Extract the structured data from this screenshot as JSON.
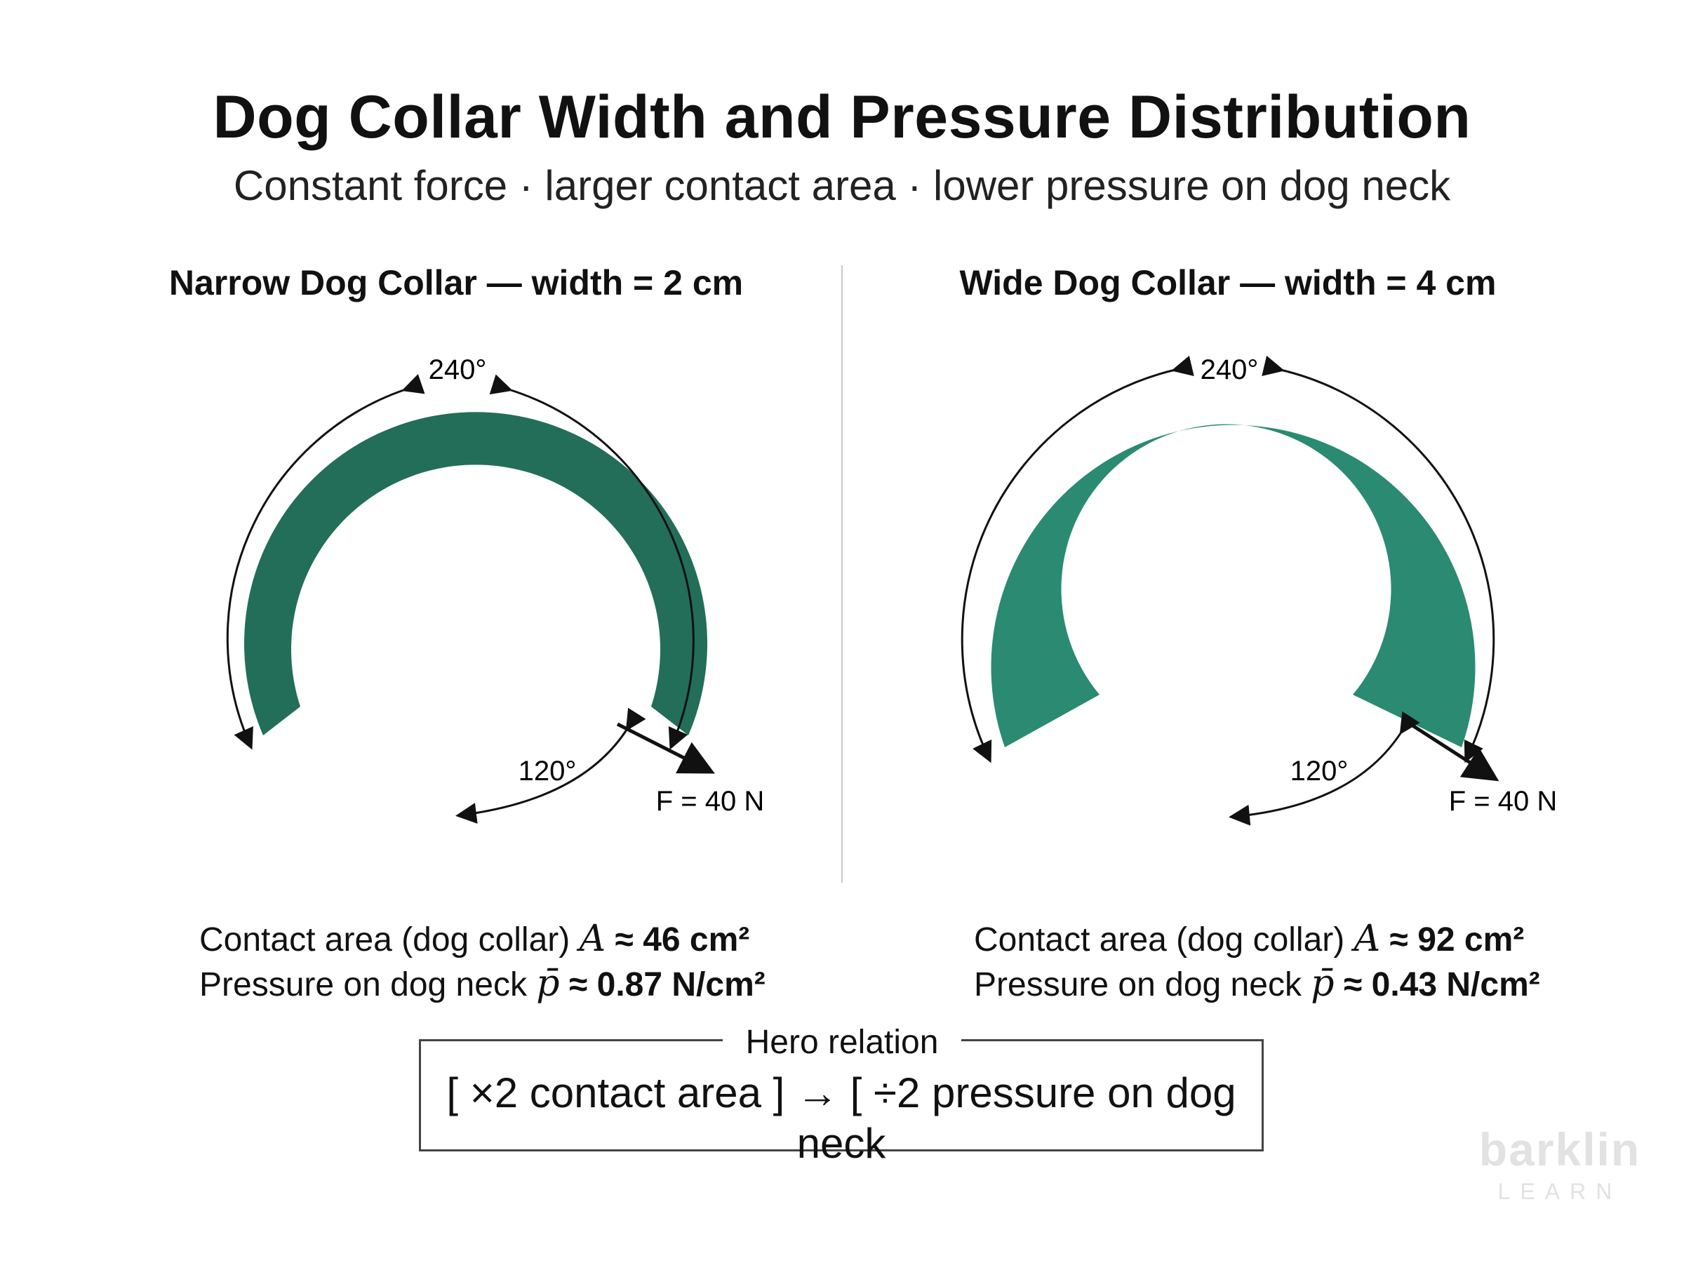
{
  "title": "Dog Collar Width and Pressure Distribution",
  "subtitle": "Constant force · larger contact area · lower pressure on dog neck",
  "colors": {
    "narrow_collar": "#236e58",
    "wide_collar": "#2a8a72",
    "arrows": "#111111",
    "divider": "#c8c8c8"
  },
  "panels": {
    "narrow": {
      "title": "Narrow Dog Collar — width = 2 cm",
      "width_cm": 2,
      "wrap_angle_label": "240°",
      "gap_angle_label": "120°",
      "force_label": "F = 40 N",
      "contact_area": {
        "label": "Contact area (dog collar)",
        "symbol": "A",
        "approx": "≈",
        "value": "46 cm²"
      },
      "pressure": {
        "label": "Pressure on dog neck",
        "symbol": "p̄",
        "approx": "≈",
        "value": "0.87 N/cm²"
      }
    },
    "wide": {
      "title": "Wide Dog Collar — width = 4 cm",
      "width_cm": 4,
      "wrap_angle_label": "240°",
      "gap_angle_label": "120°",
      "force_label": "F = 40 N",
      "contact_area": {
        "label": "Contact area (dog collar)",
        "symbol": "A",
        "approx": "≈",
        "value": "92 cm²"
      },
      "pressure": {
        "label": "Pressure on dog neck",
        "symbol": "p̄",
        "approx": "≈",
        "value": "0.43 N/cm²"
      }
    }
  },
  "relation": {
    "label": "Hero relation",
    "text": "[ ×2 contact area ] → [ ÷2 pressure on dog neck"
  },
  "logo": {
    "word": "barklin",
    "sub": "LEARN"
  }
}
